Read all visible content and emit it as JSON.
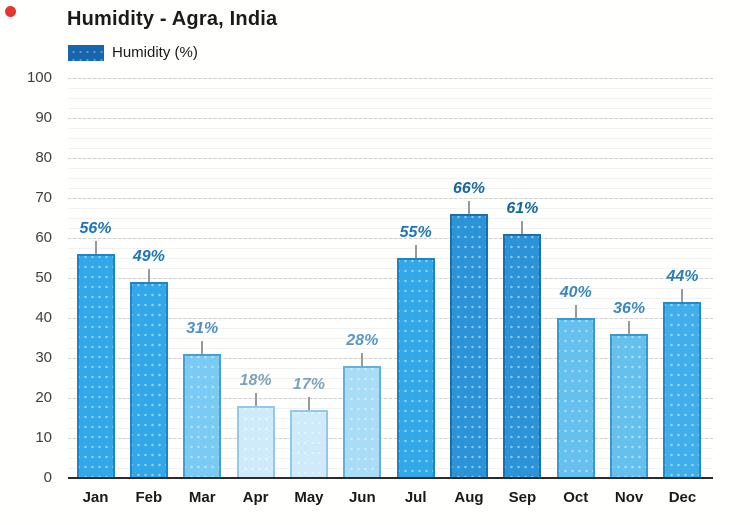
{
  "decorations": {
    "red_dot_color": "#e2382c"
  },
  "chart_data": {
    "type": "bar",
    "title": "Humidity - Agra, India",
    "legend": {
      "label": "Humidity (%)",
      "swatch_color": "#1565af",
      "position": "top-left"
    },
    "xlabel": "",
    "ylabel": "",
    "ylim": [
      0,
      100
    ],
    "ytick_step": 10,
    "ytick_labels": [
      "100",
      "90",
      "80",
      "70",
      "60",
      "50",
      "40",
      "30",
      "20",
      "10",
      "0"
    ],
    "grid": true,
    "categories": [
      "Jan",
      "Feb",
      "Mar",
      "Apr",
      "May",
      "Jun",
      "Jul",
      "Aug",
      "Sep",
      "Oct",
      "Nov",
      "Dec"
    ],
    "values": [
      56,
      49,
      31,
      18,
      17,
      28,
      55,
      66,
      61,
      40,
      36,
      44
    ],
    "value_labels": [
      "56%",
      "49%",
      "31%",
      "18%",
      "17%",
      "28%",
      "55%",
      "66%",
      "61%",
      "40%",
      "36%",
      "44%"
    ],
    "bar_styles": [
      {
        "fill": "#33a8e8",
        "border": "#1f84c6",
        "label_color": "#1d76b5"
      },
      {
        "fill": "#33a8e8",
        "border": "#1f84c6",
        "label_color": "#1d76b5"
      },
      {
        "fill": "#79cbf3",
        "border": "#47a0d4",
        "label_color": "#4e93c0"
      },
      {
        "fill": "#cfeafa",
        "border": "#90c9e9",
        "label_color": "#7aa2b8"
      },
      {
        "fill": "#cfeafa",
        "border": "#90c9e9",
        "label_color": "#7aa2b8"
      },
      {
        "fill": "#a9dcf7",
        "border": "#63b0dd",
        "label_color": "#5b99c2"
      },
      {
        "fill": "#33a8e8",
        "border": "#1f84c6",
        "label_color": "#1d76b5"
      },
      {
        "fill": "#2b94d8",
        "border": "#1a70ad",
        "label_color": "#15689f"
      },
      {
        "fill": "#2b94d8",
        "border": "#1a70ad",
        "label_color": "#15689f"
      },
      {
        "fill": "#66c0ee",
        "border": "#3898d0",
        "label_color": "#3a88b9"
      },
      {
        "fill": "#66c0ee",
        "border": "#3898d0",
        "label_color": "#3a88b9"
      },
      {
        "fill": "#40aeea",
        "border": "#2389c9",
        "label_color": "#2b7fb5"
      }
    ],
    "axis_colors": {
      "tick_text": "#3d3d3d",
      "x_tick_text": "#1a1a1a",
      "gridline": "#cfcfcf",
      "baseline": "#2b2b2b",
      "whisker": "#999999"
    }
  }
}
